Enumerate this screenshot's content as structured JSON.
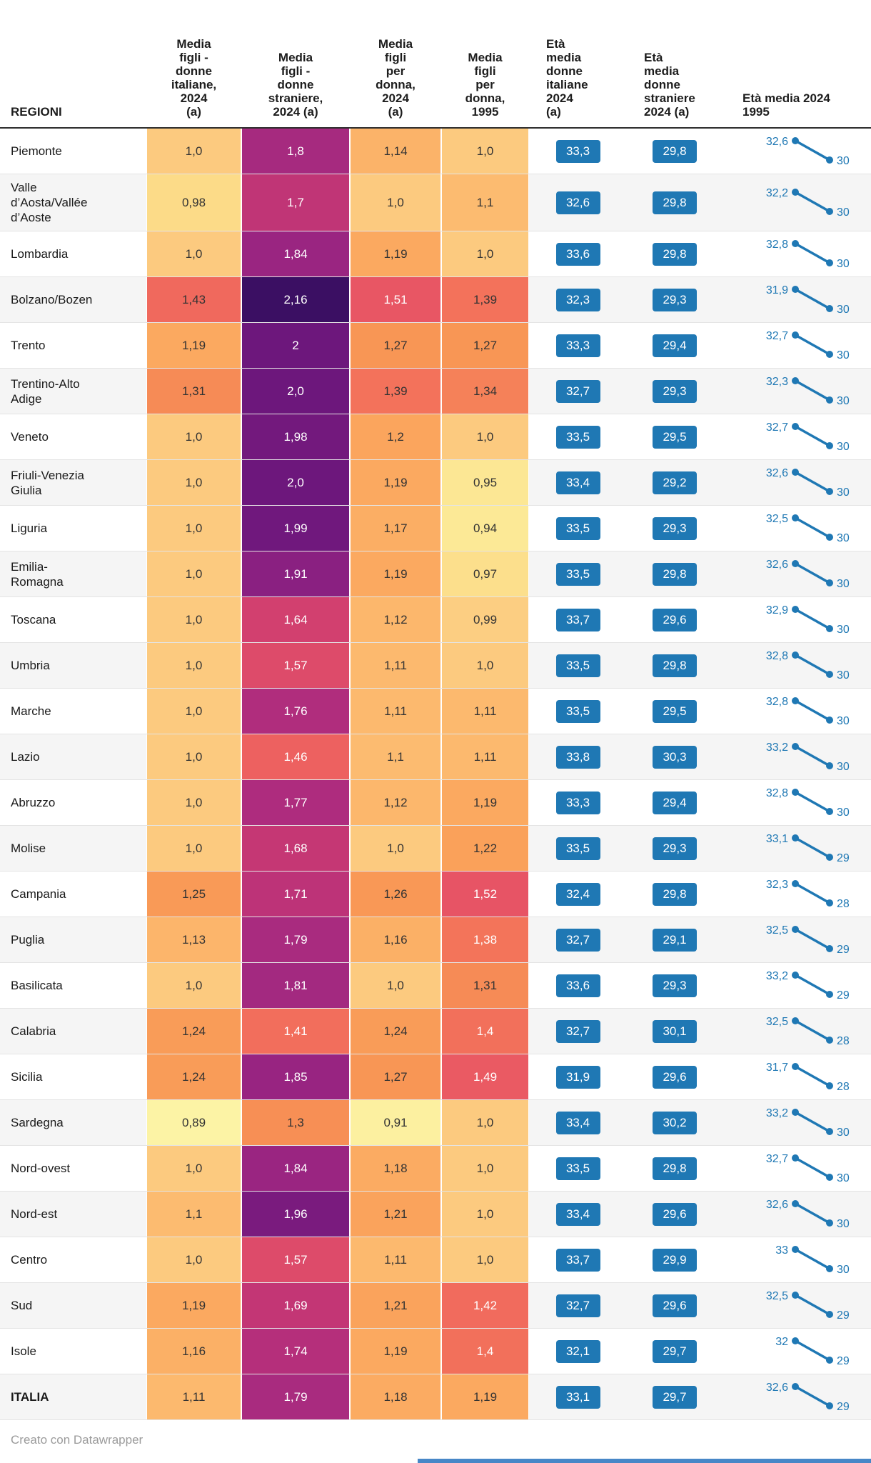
{
  "chart_data": {
    "type": "table",
    "columns": [
      {
        "key": "regioni",
        "label": "REGIONI"
      },
      {
        "key": "media-figli-italiane-2024",
        "label": "Media\nfigli -\ndonne\nitaliane,\n2024\n(a)"
      },
      {
        "key": "media-figli-straniere-2024",
        "label": "Media\nfigli -\ndonne\nstraniere,\n2024 (a)"
      },
      {
        "key": "media-figli-2024",
        "label": "Media\nfigli\nper\ndonna,\n2024\n(a)"
      },
      {
        "key": "media-figli-1995",
        "label": "Media\nfigli\nper\ndonna,\n1995"
      },
      {
        "key": "eta-media-italiane-2024",
        "label": "Età\nmedia\ndonne\nitaliane\n2024\n(a)"
      },
      {
        "key": "eta-media-straniere-2024",
        "label": "Età\nmedia\ndonne\nstraniere\n2024 (a)"
      },
      {
        "key": "eta-media-trend",
        "label": "Età media 2024\n1995"
      }
    ],
    "sparkline_series": [
      "Età media 2024",
      "1995"
    ],
    "rows": [
      {
        "region": "Piemonte",
        "heat": [
          [
            "1,0",
            "#fcca7f",
            "dark"
          ],
          [
            "1,8",
            "#a62a7f",
            "light"
          ],
          [
            "1,14",
            "#fbb369",
            "dark"
          ],
          [
            "1,0",
            "#fcca7f",
            "dark"
          ]
        ],
        "eta_italiane": "33,3",
        "eta_straniere": "29,8",
        "spark_2024": "32,6",
        "spark_1995": "30"
      },
      {
        "region": "Valle\nd’Aosta/Vallée\nd’Aoste",
        "heat": [
          [
            "0,98",
            "#fcdb88",
            "dark"
          ],
          [
            "1,7",
            "#c03576",
            "light"
          ],
          [
            "1,0",
            "#fcca7f",
            "dark"
          ],
          [
            "1,1",
            "#fcbb70",
            "dark"
          ]
        ],
        "eta_italiane": "32,6",
        "eta_straniere": "29,8",
        "spark_2024": "32,2",
        "spark_1995": "30"
      },
      {
        "region": "Lombardia",
        "heat": [
          [
            "1,0",
            "#fcca7f",
            "dark"
          ],
          [
            "1,84",
            "#9a2581",
            "light"
          ],
          [
            "1,19",
            "#fba960",
            "dark"
          ],
          [
            "1,0",
            "#fcca7f",
            "dark"
          ]
        ],
        "eta_italiane": "33,6",
        "eta_straniere": "29,8",
        "spark_2024": "32,8",
        "spark_1995": "30"
      },
      {
        "region": "Bolzano/Bozen",
        "heat": [
          [
            "1,43",
            "#f0695d",
            "dark"
          ],
          [
            "2,16",
            "#3b0f63",
            "light"
          ],
          [
            "1,51",
            "#e85664",
            "light"
          ],
          [
            "1,39",
            "#f3725b",
            "dark"
          ]
        ],
        "eta_italiane": "32,3",
        "eta_straniere": "29,3",
        "spark_2024": "31,9",
        "spark_1995": "30"
      },
      {
        "region": "Trento",
        "heat": [
          [
            "1,19",
            "#fba960",
            "dark"
          ],
          [
            "2",
            "#6d177c",
            "light"
          ],
          [
            "1,27",
            "#f89655",
            "dark"
          ],
          [
            "1,27",
            "#f89655",
            "dark"
          ]
        ],
        "eta_italiane": "33,3",
        "eta_straniere": "29,4",
        "spark_2024": "32,7",
        "spark_1995": "30"
      },
      {
        "region": "Trentino-Alto\nAdige",
        "heat": [
          [
            "1,31",
            "#f68b56",
            "dark"
          ],
          [
            "2,0",
            "#6d177c",
            "light"
          ],
          [
            "1,39",
            "#f3725b",
            "dark"
          ],
          [
            "1,34",
            "#f58159",
            "dark"
          ]
        ],
        "eta_italiane": "32,7",
        "eta_straniere": "29,3",
        "spark_2024": "32,3",
        "spark_1995": "30"
      },
      {
        "region": "Veneto",
        "heat": [
          [
            "1,0",
            "#fcca7f",
            "dark"
          ],
          [
            "1,98",
            "#73197d",
            "light"
          ],
          [
            "1,2",
            "#fba55d",
            "dark"
          ],
          [
            "1,0",
            "#fcca7f",
            "dark"
          ]
        ],
        "eta_italiane": "33,5",
        "eta_straniere": "29,5",
        "spark_2024": "32,7",
        "spark_1995": "30"
      },
      {
        "region": "Friuli-Venezia\nGiulia",
        "heat": [
          [
            "1,0",
            "#fcca7f",
            "dark"
          ],
          [
            "2,0",
            "#6d177c",
            "light"
          ],
          [
            "1,19",
            "#fba960",
            "dark"
          ],
          [
            "0,95",
            "#fce794",
            "dark"
          ]
        ],
        "eta_italiane": "33,4",
        "eta_straniere": "29,2",
        "spark_2024": "32,6",
        "spark_1995": "30"
      },
      {
        "region": "Liguria",
        "heat": [
          [
            "1,0",
            "#fcca7f",
            "dark"
          ],
          [
            "1,99",
            "#70187d",
            "light"
          ],
          [
            "1,17",
            "#fbae64",
            "dark"
          ],
          [
            "0,94",
            "#fce996",
            "dark"
          ]
        ],
        "eta_italiane": "33,5",
        "eta_straniere": "29,3",
        "spark_2024": "32,5",
        "spark_1995": "30"
      },
      {
        "region": "Emilia-\nRomagna",
        "heat": [
          [
            "1,0",
            "#fcca7f",
            "dark"
          ],
          [
            "1,91",
            "#8a2081",
            "light"
          ],
          [
            "1,19",
            "#fba960",
            "dark"
          ],
          [
            "0,97",
            "#fcdf8c",
            "dark"
          ]
        ],
        "eta_italiane": "33,5",
        "eta_straniere": "29,8",
        "spark_2024": "32,6",
        "spark_1995": "30"
      },
      {
        "region": "Toscana",
        "heat": [
          [
            "1,0",
            "#fcca7f",
            "dark"
          ],
          [
            "1,64",
            "#d2406f",
            "light"
          ],
          [
            "1,12",
            "#fcb76c",
            "dark"
          ],
          [
            "0,99",
            "#fcce82",
            "dark"
          ]
        ],
        "eta_italiane": "33,7",
        "eta_straniere": "29,6",
        "spark_2024": "32,9",
        "spark_1995": "30"
      },
      {
        "region": "Umbria",
        "heat": [
          [
            "1,0",
            "#fcca7f",
            "dark"
          ],
          [
            "1,57",
            "#dd4b6a",
            "light"
          ],
          [
            "1,11",
            "#fcb96e",
            "dark"
          ],
          [
            "1,0",
            "#fcca7f",
            "dark"
          ]
        ],
        "eta_italiane": "33,5",
        "eta_straniere": "29,8",
        "spark_2024": "32,8",
        "spark_1995": "30"
      },
      {
        "region": "Marche",
        "heat": [
          [
            "1,0",
            "#fcca7f",
            "dark"
          ],
          [
            "1,76",
            "#b02d7d",
            "light"
          ],
          [
            "1,11",
            "#fcb96e",
            "dark"
          ],
          [
            "1,11",
            "#fcb96e",
            "dark"
          ]
        ],
        "eta_italiane": "33,5",
        "eta_straniere": "29,5",
        "spark_2024": "32,8",
        "spark_1995": "30"
      },
      {
        "region": "Lazio",
        "heat": [
          [
            "1,0",
            "#fcca7f",
            "dark"
          ],
          [
            "1,46",
            "#ed6160",
            "light"
          ],
          [
            "1,1",
            "#fcbb70",
            "dark"
          ],
          [
            "1,11",
            "#fcb96e",
            "dark"
          ]
        ],
        "eta_italiane": "33,8",
        "eta_straniere": "30,3",
        "spark_2024": "33,2",
        "spark_1995": "30"
      },
      {
        "region": "Abruzzo",
        "heat": [
          [
            "1,0",
            "#fcca7f",
            "dark"
          ],
          [
            "1,77",
            "#ae2c7e",
            "light"
          ],
          [
            "1,12",
            "#fcb76c",
            "dark"
          ],
          [
            "1,19",
            "#fba960",
            "dark"
          ]
        ],
        "eta_italiane": "33,3",
        "eta_straniere": "29,4",
        "spark_2024": "32,8",
        "spark_1995": "30"
      },
      {
        "region": "Molise",
        "heat": [
          [
            "1,0",
            "#fcca7f",
            "dark"
          ],
          [
            "1,68",
            "#c53774",
            "light"
          ],
          [
            "1,0",
            "#fcca7f",
            "dark"
          ],
          [
            "1,22",
            "#faa15a",
            "dark"
          ]
        ],
        "eta_italiane": "33,5",
        "eta_straniere": "29,3",
        "spark_2024": "33,1",
        "spark_1995": "29"
      },
      {
        "region": "Campania",
        "heat": [
          [
            "1,25",
            "#f99a57",
            "dark"
          ],
          [
            "1,71",
            "#bd3378",
            "light"
          ],
          [
            "1,26",
            "#f99856",
            "dark"
          ],
          [
            "1,52",
            "#e75465",
            "light"
          ]
        ],
        "eta_italiane": "32,4",
        "eta_straniere": "29,8",
        "spark_2024": "32,3",
        "spark_1995": "28"
      },
      {
        "region": "Puglia",
        "heat": [
          [
            "1,13",
            "#fcb56b",
            "dark"
          ],
          [
            "1,79",
            "#a92b7f",
            "light"
          ],
          [
            "1,16",
            "#fbb066",
            "dark"
          ],
          [
            "1,38",
            "#f3745a",
            "light"
          ]
        ],
        "eta_italiane": "32,7",
        "eta_straniere": "29,1",
        "spark_2024": "32,5",
        "spark_1995": "29"
      },
      {
        "region": "Basilicata",
        "heat": [
          [
            "1,0",
            "#fcca7f",
            "dark"
          ],
          [
            "1,81",
            "#a32980",
            "light"
          ],
          [
            "1,0",
            "#fcca7f",
            "dark"
          ],
          [
            "1,31",
            "#f68b56",
            "dark"
          ]
        ],
        "eta_italiane": "33,6",
        "eta_straniere": "29,3",
        "spark_2024": "33,2",
        "spark_1995": "29"
      },
      {
        "region": "Calabria",
        "heat": [
          [
            "1,24",
            "#f99c58",
            "dark"
          ],
          [
            "1,41",
            "#f26e5c",
            "light"
          ],
          [
            "1,24",
            "#f99c58",
            "dark"
          ],
          [
            "1,4",
            "#f2705b",
            "light"
          ]
        ],
        "eta_italiane": "32,7",
        "eta_straniere": "30,1",
        "spark_2024": "32,5",
        "spark_1995": "28"
      },
      {
        "region": "Sicilia",
        "heat": [
          [
            "1,24",
            "#f99c58",
            "dark"
          ],
          [
            "1,85",
            "#982481",
            "light"
          ],
          [
            "1,27",
            "#f89655",
            "dark"
          ],
          [
            "1,49",
            "#ea5a63",
            "light"
          ]
        ],
        "eta_italiane": "31,9",
        "eta_straniere": "29,6",
        "spark_2024": "31,7",
        "spark_1995": "28"
      },
      {
        "region": "Sardegna",
        "heat": [
          [
            "0,89",
            "#fcf3a5",
            "dark"
          ],
          [
            "1,3",
            "#f78f55",
            "dark"
          ],
          [
            "0,91",
            "#fcf0a0",
            "dark"
          ],
          [
            "1,0",
            "#fcca7f",
            "dark"
          ]
        ],
        "eta_italiane": "33,4",
        "eta_straniere": "30,2",
        "spark_2024": "33,2",
        "spark_1995": "30"
      },
      {
        "region": "Nord-ovest",
        "heat": [
          [
            "1,0",
            "#fcca7f",
            "dark"
          ],
          [
            "1,84",
            "#9a2581",
            "light"
          ],
          [
            "1,18",
            "#fbab62",
            "dark"
          ],
          [
            "1,0",
            "#fcca7f",
            "dark"
          ]
        ],
        "eta_italiane": "33,5",
        "eta_straniere": "29,8",
        "spark_2024": "32,7",
        "spark_1995": "30"
      },
      {
        "region": "Nord-est",
        "heat": [
          [
            "1,1",
            "#fcbb70",
            "dark"
          ],
          [
            "1,96",
            "#7a1b7e",
            "light"
          ],
          [
            "1,21",
            "#faa35c",
            "dark"
          ],
          [
            "1,0",
            "#fcca7f",
            "dark"
          ]
        ],
        "eta_italiane": "33,4",
        "eta_straniere": "29,6",
        "spark_2024": "32,6",
        "spark_1995": "30"
      },
      {
        "region": "Centro",
        "heat": [
          [
            "1,0",
            "#fcca7f",
            "dark"
          ],
          [
            "1,57",
            "#dd4b6a",
            "light"
          ],
          [
            "1,11",
            "#fcb96e",
            "dark"
          ],
          [
            "1,0",
            "#fcca7f",
            "dark"
          ]
        ],
        "eta_italiane": "33,7",
        "eta_straniere": "29,9",
        "spark_2024": "33",
        "spark_1995": "30"
      },
      {
        "region": "Sud",
        "heat": [
          [
            "1,19",
            "#fba960",
            "dark"
          ],
          [
            "1,69",
            "#c33675",
            "light"
          ],
          [
            "1,21",
            "#faa35c",
            "dark"
          ],
          [
            "1,42",
            "#f16b5d",
            "light"
          ]
        ],
        "eta_italiane": "32,7",
        "eta_straniere": "29,6",
        "spark_2024": "32,5",
        "spark_1995": "29"
      },
      {
        "region": "Isole",
        "heat": [
          [
            "1,16",
            "#fbb066",
            "dark"
          ],
          [
            "1,74",
            "#b52f7b",
            "light"
          ],
          [
            "1,19",
            "#fba960",
            "dark"
          ],
          [
            "1,4",
            "#f2705b",
            "light"
          ]
        ],
        "eta_italiane": "32,1",
        "eta_straniere": "29,7",
        "spark_2024": "32",
        "spark_1995": "29"
      },
      {
        "region": "ITALIA",
        "bold": true,
        "heat": [
          [
            "1,11",
            "#fcb96e",
            "dark"
          ],
          [
            "1,79",
            "#a92b7f",
            "light"
          ],
          [
            "1,18",
            "#fbab62",
            "dark"
          ],
          [
            "1,19",
            "#fba960",
            "dark"
          ]
        ],
        "eta_italiane": "33,1",
        "eta_straniere": "29,7",
        "spark_2024": "32,6",
        "spark_1995": "29"
      }
    ]
  },
  "colors": {
    "accent": "#1f78b4",
    "dark_text": "#333333",
    "light_text": "#ffffff",
    "alt_row": "#f5f5f5",
    "separator": "#e4e4e4",
    "header_rule": "#2e2e2e",
    "credit": "#9b9b9b",
    "scrollbar": "#4787c7"
  },
  "footer": {
    "credit": "Creato con Datawrapper"
  }
}
